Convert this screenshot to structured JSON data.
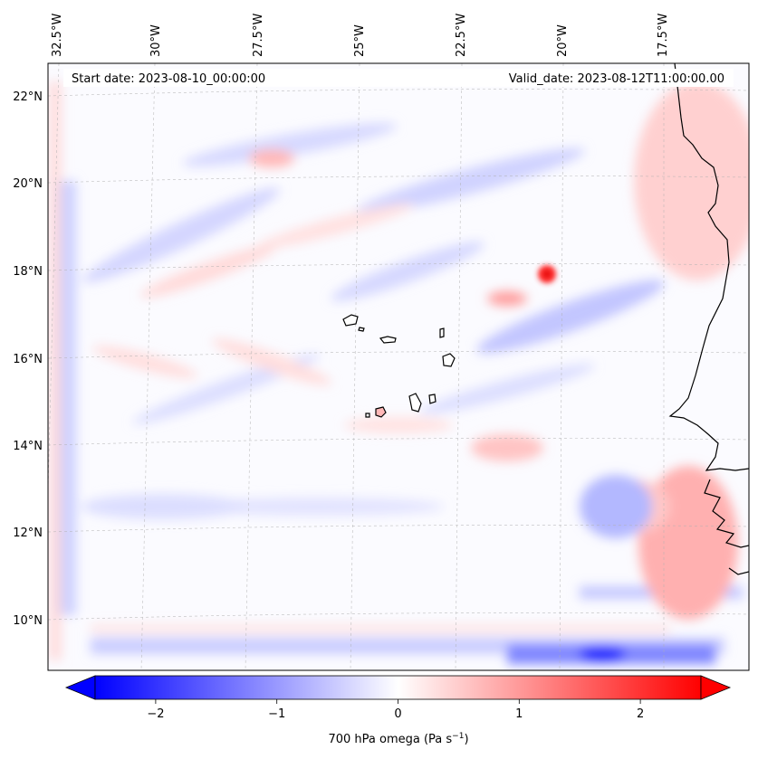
{
  "map": {
    "start_date": "Start date: 2023-08-10_00:00:00",
    "valid_date": "Valid_date: 2023-08-12T11:00:00.00",
    "lon_labels": [
      "32.5°W",
      "30°W",
      "27.5°W",
      "25°W",
      "22.5°W",
      "20°W",
      "17.5°W"
    ],
    "lat_labels": [
      "22°N",
      "20°N",
      "18°N",
      "16°N",
      "14°N",
      "12°N",
      "10°N"
    ],
    "colors": {
      "negative": "#0000ff",
      "zero": "#ffffff",
      "positive": "#ff0000",
      "coast": "#000000"
    }
  },
  "colorbar": {
    "ticks": [
      "−2",
      "−1",
      "0",
      "1",
      "2"
    ],
    "tick_values": [
      -2,
      -1,
      0,
      1,
      2
    ],
    "range": [
      -2.5,
      2.5
    ],
    "label": "700 hPa omega (Pa s",
    "label_sup": "−1",
    "label_end": ")"
  }
}
